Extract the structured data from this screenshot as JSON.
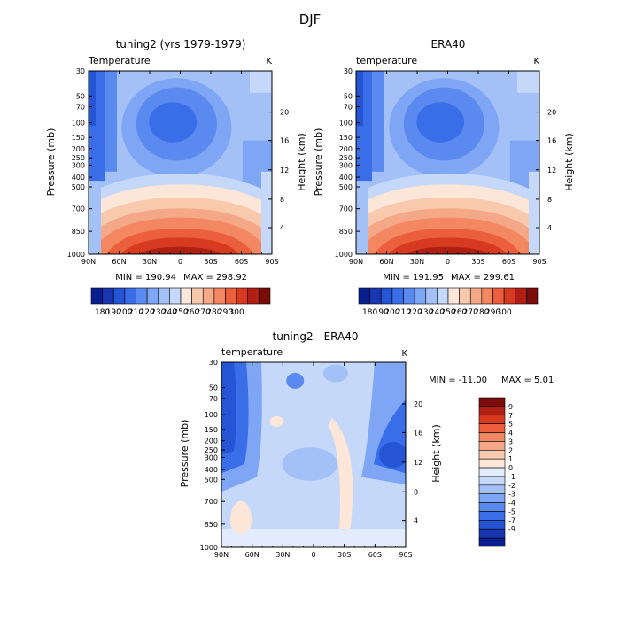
{
  "figure_title": "DJF",
  "palettes": {
    "abs": [
      "#0a1f8f",
      "#1736b0",
      "#2554d4",
      "#3a6ee8",
      "#5a8af0",
      "#7ea6f5",
      "#a3c0f7",
      "#c6d8fa",
      "#fbe6d8",
      "#f8c9ad",
      "#f5a887",
      "#f28762",
      "#ec5f3c",
      "#d63b22",
      "#b01f14",
      "#7a0d0a"
    ],
    "diff": [
      "#0a1f8f",
      "#1736b0",
      "#2554d4",
      "#3a6ee8",
      "#5a8af0",
      "#7ea6f5",
      "#a3c0f7",
      "#c6d8fa",
      "#e2ecfc",
      "#fbe6d8",
      "#f8c9ad",
      "#f5a887",
      "#f28762",
      "#ec5f3c",
      "#d63b22",
      "#b01f14",
      "#7a0d0a"
    ]
  },
  "chart_data": [
    {
      "type": "heatmap",
      "title": "tuning2 (yrs 1979-1979)",
      "variable_label": "Temperature",
      "units": "K",
      "ylabel": "Pressure (mb)",
      "ylabel_right": "Height (km)",
      "x_ticks": [
        "90N",
        "60N",
        "30N",
        "0",
        "30S",
        "60S",
        "90S"
      ],
      "y_ticks": [
        "30",
        "50",
        "70",
        "100",
        "150",
        "200",
        "250",
        "300",
        "400",
        "500",
        "700",
        "850",
        "1000"
      ],
      "height_ticks": [
        "4",
        "8",
        "12",
        "16",
        "20"
      ],
      "min_text": "MIN = 190.94",
      "max_text": "MAX = 298.92",
      "colorbar_labels": [
        "180",
        "190",
        "200",
        "210",
        "220",
        "230",
        "240",
        "250",
        "260",
        "270",
        "280",
        "290",
        "300"
      ],
      "colorbar_levels": [
        180,
        190,
        200,
        210,
        220,
        230,
        240,
        250,
        260,
        270,
        280,
        290,
        300
      ]
    },
    {
      "type": "heatmap",
      "title": "ERA40",
      "variable_label": "temperature",
      "units": "K",
      "ylabel": "Pressure (mb)",
      "ylabel_right": "Height (km)",
      "x_ticks": [
        "90N",
        "60N",
        "30N",
        "0",
        "30S",
        "60S",
        "90S"
      ],
      "y_ticks": [
        "30",
        "50",
        "70",
        "100",
        "150",
        "200",
        "250",
        "300",
        "400",
        "500",
        "700",
        "850",
        "1000"
      ],
      "height_ticks": [
        "4",
        "8",
        "12",
        "16",
        "20"
      ],
      "min_text": "MIN = 191.95",
      "max_text": "MAX = 299.61",
      "colorbar_labels": [
        "180",
        "190",
        "200",
        "210",
        "220",
        "230",
        "240",
        "250",
        "260",
        "270",
        "280",
        "290",
        "300"
      ],
      "colorbar_levels": [
        180,
        190,
        200,
        210,
        220,
        230,
        240,
        250,
        260,
        270,
        280,
        290,
        300
      ]
    },
    {
      "type": "heatmap",
      "title": "tuning2 - ERA40",
      "variable_label": "temperature",
      "units": "K",
      "ylabel": "Pressure (mb)",
      "ylabel_right": "Height (km)",
      "x_ticks": [
        "90N",
        "60N",
        "30N",
        "0",
        "30S",
        "60S",
        "90S"
      ],
      "y_ticks": [
        "30",
        "50",
        "70",
        "100",
        "150",
        "200",
        "250",
        "300",
        "400",
        "500",
        "700",
        "850",
        "1000"
      ],
      "height_ticks": [
        "4",
        "8",
        "12",
        "16",
        "20"
      ],
      "min_text": "MIN = -11.00",
      "max_text": "MAX = 5.01",
      "colorbar_labels": [
        "9",
        "7",
        "5",
        "4",
        "3",
        "2",
        "1",
        "0",
        "-1",
        "-2",
        "-3",
        "-4",
        "-5",
        "-7",
        "-9"
      ],
      "colorbar_levels": [
        -9,
        -7,
        -5,
        -4,
        -3,
        -2,
        -1,
        0,
        1,
        2,
        3,
        4,
        5,
        7,
        9
      ]
    }
  ]
}
